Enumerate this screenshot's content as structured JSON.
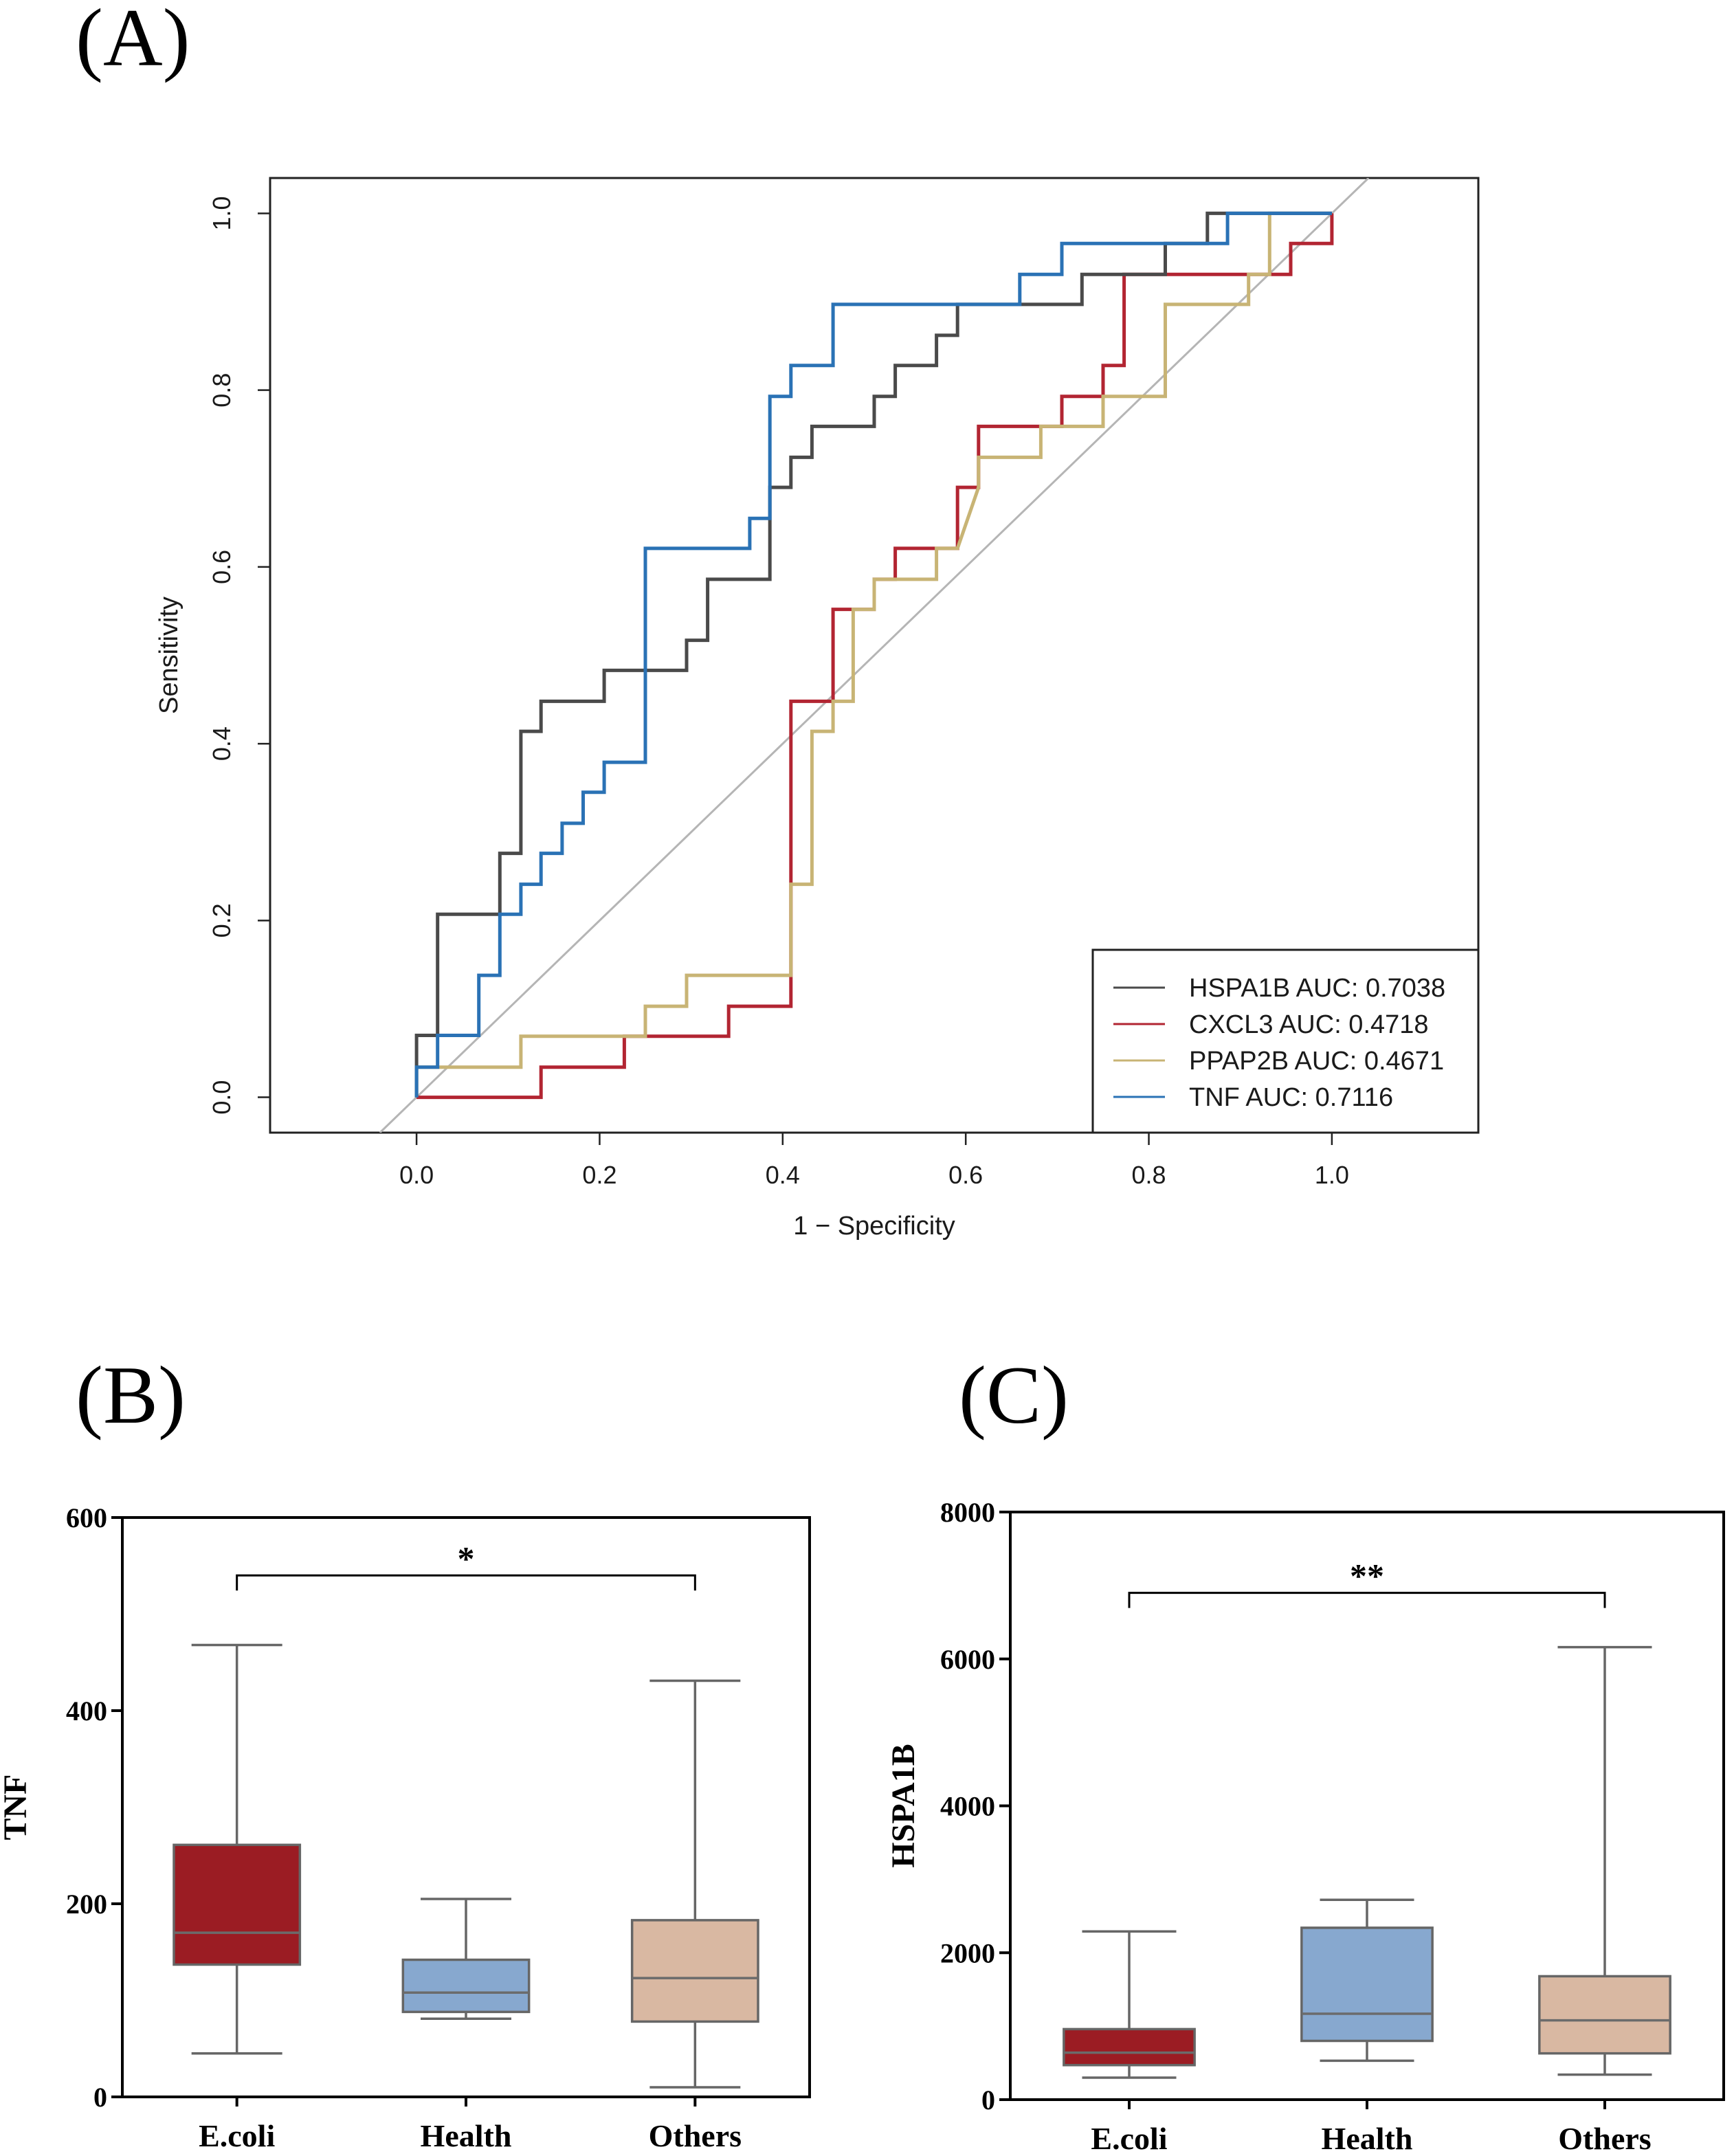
{
  "panels": {
    "a": "(A)",
    "b": "(B)",
    "c": "(C)"
  },
  "chart_data": [
    {
      "type": "line",
      "panel": "(A)",
      "title": "",
      "xlabel": "1 − Specificity",
      "ylabel": "Sensitivity",
      "xlim": [
        -0.16,
        1.16
      ],
      "ylim": [
        -0.04,
        1.04
      ],
      "xticks": [
        "0.0",
        "0.2",
        "0.4",
        "0.6",
        "0.8",
        "1.0"
      ],
      "yticks": [
        "0.0",
        "0.2",
        "0.4",
        "0.6",
        "0.8",
        "1.0"
      ],
      "reference_line": "diagonal",
      "legend_position": "bottom-right",
      "series": [
        {
          "name": "HSPA1B",
          "legend": "HSPA1B AUC: 0.7038",
          "auc": 0.7038,
          "color": "#4a4a4a",
          "points": [
            [
              0,
              0
            ],
            [
              0,
              0.07
            ],
            [
              0.023,
              0.07
            ],
            [
              0.023,
              0.207
            ],
            [
              0.091,
              0.207
            ],
            [
              0.091,
              0.276
            ],
            [
              0.114,
              0.276
            ],
            [
              0.114,
              0.414
            ],
            [
              0.136,
              0.414
            ],
            [
              0.136,
              0.448
            ],
            [
              0.205,
              0.448
            ],
            [
              0.205,
              0.483
            ],
            [
              0.295,
              0.483
            ],
            [
              0.295,
              0.517
            ],
            [
              0.318,
              0.517
            ],
            [
              0.318,
              0.586
            ],
            [
              0.386,
              0.586
            ],
            [
              0.386,
              0.69
            ],
            [
              0.409,
              0.69
            ],
            [
              0.409,
              0.724
            ],
            [
              0.432,
              0.724
            ],
            [
              0.432,
              0.759
            ],
            [
              0.5,
              0.759
            ],
            [
              0.5,
              0.793
            ],
            [
              0.523,
              0.793
            ],
            [
              0.523,
              0.828
            ],
            [
              0.568,
              0.828
            ],
            [
              0.568,
              0.862
            ],
            [
              0.591,
              0.862
            ],
            [
              0.591,
              0.897
            ],
            [
              0.727,
              0.897
            ],
            [
              0.727,
              0.931
            ],
            [
              0.818,
              0.931
            ],
            [
              0.818,
              0.966
            ],
            [
              0.864,
              0.966
            ],
            [
              0.864,
              1.0
            ],
            [
              1.0,
              1.0
            ]
          ]
        },
        {
          "name": "CXCL3",
          "legend": "CXCL3 AUC: 0.4718",
          "auc": 0.4718,
          "color": "#b22532",
          "points": [
            [
              0,
              0
            ],
            [
              0.136,
              0
            ],
            [
              0.136,
              0.034
            ],
            [
              0.227,
              0.034
            ],
            [
              0.227,
              0.069
            ],
            [
              0.341,
              0.069
            ],
            [
              0.341,
              0.103
            ],
            [
              0.409,
              0.103
            ],
            [
              0.409,
              0.241
            ],
            [
              0.409,
              0.448
            ],
            [
              0.455,
              0.448
            ],
            [
              0.455,
              0.552
            ],
            [
              0.5,
              0.552
            ],
            [
              0.5,
              0.586
            ],
            [
              0.523,
              0.586
            ],
            [
              0.523,
              0.621
            ],
            [
              0.591,
              0.621
            ],
            [
              0.591,
              0.69
            ],
            [
              0.614,
              0.69
            ],
            [
              0.614,
              0.759
            ],
            [
              0.682,
              0.759
            ],
            [
              0.682,
              0.759
            ],
            [
              0.705,
              0.759
            ],
            [
              0.705,
              0.793
            ],
            [
              0.75,
              0.793
            ],
            [
              0.75,
              0.828
            ],
            [
              0.773,
              0.828
            ],
            [
              0.773,
              0.931
            ],
            [
              0.909,
              0.931
            ],
            [
              0.909,
              0.931
            ],
            [
              0.955,
              0.931
            ],
            [
              0.955,
              0.966
            ],
            [
              1.0,
              0.966
            ],
            [
              1.0,
              1.0
            ]
          ]
        },
        {
          "name": "PPAP2B",
          "legend": "PPAP2B AUC: 0.4671",
          "auc": 0.4671,
          "color": "#c8b475",
          "points": [
            [
              0,
              0
            ],
            [
              0,
              0.034
            ],
            [
              0.114,
              0.034
            ],
            [
              0.114,
              0.069
            ],
            [
              0.25,
              0.069
            ],
            [
              0.25,
              0.103
            ],
            [
              0.295,
              0.103
            ],
            [
              0.295,
              0.138
            ],
            [
              0.409,
              0.138
            ],
            [
              0.409,
              0.241
            ],
            [
              0.432,
              0.241
            ],
            [
              0.432,
              0.414
            ],
            [
              0.455,
              0.414
            ],
            [
              0.455,
              0.448
            ],
            [
              0.477,
              0.448
            ],
            [
              0.477,
              0.552
            ],
            [
              0.5,
              0.552
            ],
            [
              0.5,
              0.586
            ],
            [
              0.568,
              0.586
            ],
            [
              0.568,
              0.621
            ],
            [
              0.591,
              0.621
            ],
            [
              0.614,
              0.69
            ],
            [
              0.614,
              0.724
            ],
            [
              0.682,
              0.724
            ],
            [
              0.682,
              0.759
            ],
            [
              0.75,
              0.759
            ],
            [
              0.75,
              0.793
            ],
            [
              0.818,
              0.793
            ],
            [
              0.818,
              0.897
            ],
            [
              0.909,
              0.897
            ],
            [
              0.909,
              0.931
            ],
            [
              0.932,
              0.931
            ],
            [
              0.932,
              1.0
            ],
            [
              1.0,
              1.0
            ]
          ]
        },
        {
          "name": "TNF",
          "legend": "TNF AUC: 0.7116",
          "auc": 0.7116,
          "color": "#2a72b5",
          "points": [
            [
              0,
              0
            ],
            [
              0,
              0.034
            ],
            [
              0.023,
              0.034
            ],
            [
              0.023,
              0.07
            ],
            [
              0.068,
              0.07
            ],
            [
              0.068,
              0.138
            ],
            [
              0.091,
              0.138
            ],
            [
              0.091,
              0.207
            ],
            [
              0.114,
              0.207
            ],
            [
              0.114,
              0.241
            ],
            [
              0.136,
              0.241
            ],
            [
              0.136,
              0.276
            ],
            [
              0.159,
              0.276
            ],
            [
              0.159,
              0.31
            ],
            [
              0.182,
              0.31
            ],
            [
              0.182,
              0.345
            ],
            [
              0.205,
              0.345
            ],
            [
              0.205,
              0.379
            ],
            [
              0.25,
              0.379
            ],
            [
              0.25,
              0.621
            ],
            [
              0.364,
              0.621
            ],
            [
              0.364,
              0.655
            ],
            [
              0.386,
              0.655
            ],
            [
              0.386,
              0.793
            ],
            [
              0.409,
              0.793
            ],
            [
              0.409,
              0.828
            ],
            [
              0.455,
              0.828
            ],
            [
              0.455,
              0.897
            ],
            [
              0.659,
              0.897
            ],
            [
              0.659,
              0.931
            ],
            [
              0.705,
              0.931
            ],
            [
              0.705,
              0.966
            ],
            [
              0.886,
              0.966
            ],
            [
              0.886,
              1.0
            ],
            [
              1.0,
              1.0
            ]
          ]
        }
      ]
    },
    {
      "type": "box",
      "panel": "(B)",
      "ylabel": "TNF",
      "ylim": [
        0,
        600
      ],
      "yticks": [
        "0",
        "200",
        "400",
        "600"
      ],
      "categories": [
        "E.coli",
        "Health",
        "Others"
      ],
      "boxes": [
        {
          "category": "E.coli",
          "min": 45,
          "q1": 137,
          "median": 170,
          "q3": 261,
          "max": 468,
          "color": "#9b1c23"
        },
        {
          "category": "Health",
          "min": 81,
          "q1": 88,
          "median": 108,
          "q3": 142,
          "max": 205,
          "color": "#87a8cf"
        },
        {
          "category": "Others",
          "min": 10,
          "q1": 78,
          "median": 123,
          "q3": 183,
          "max": 431,
          "color": "#d9b8a2"
        }
      ],
      "significance": {
        "from": "E.coli",
        "to": "Others",
        "label": "*",
        "y": 540
      }
    },
    {
      "type": "box",
      "panel": "(C)",
      "ylabel": "HSPA1B",
      "ylim": [
        0,
        8000
      ],
      "yticks": [
        "0",
        "2000",
        "4000",
        "6000",
        "8000"
      ],
      "categories": [
        "E.coli",
        "Health",
        "Others"
      ],
      "boxes": [
        {
          "category": "E.coli",
          "min": 300,
          "q1": 470,
          "median": 640,
          "q3": 960,
          "max": 2290,
          "color": "#9b1c23"
        },
        {
          "category": "Health",
          "min": 530,
          "q1": 800,
          "median": 1170,
          "q3": 2340,
          "max": 2720,
          "color": "#87a8cf"
        },
        {
          "category": "Others",
          "min": 340,
          "q1": 630,
          "median": 1080,
          "q3": 1680,
          "max": 6160,
          "color": "#d9b8a2"
        }
      ],
      "significance": {
        "from": "E.coli",
        "to": "Others",
        "label": "**",
        "y": 6900
      }
    }
  ]
}
